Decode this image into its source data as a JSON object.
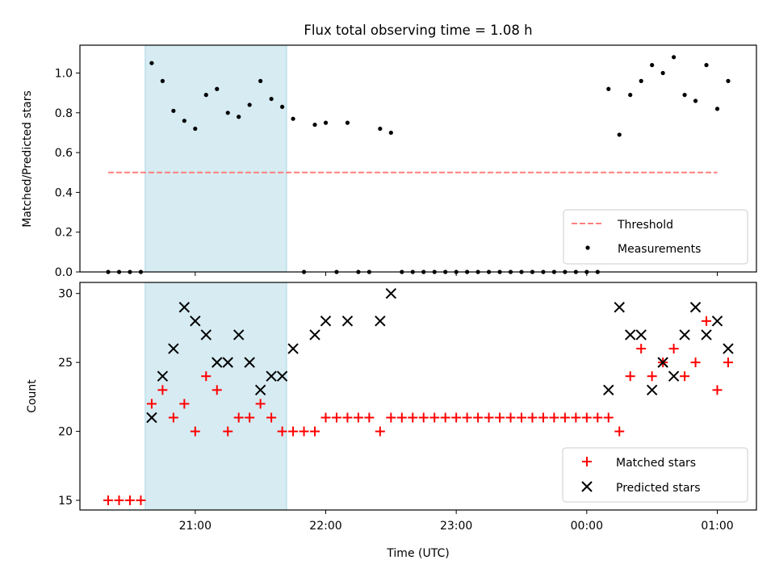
{
  "chart_data": [
    {
      "type": "scatter",
      "title": "Flux total observing time = 1.08 h",
      "xlabel": "",
      "ylabel": "Matched/Predicted stars",
      "xlim": [
        "20:07",
        "01:18"
      ],
      "ylim": [
        0,
        1.14
      ],
      "yticks": [
        "0.0",
        "0.2",
        "0.4",
        "0.6",
        "0.8",
        "1.0"
      ],
      "xticks": [
        "21:00",
        "22:00",
        "23:00",
        "00:00",
        "01:00"
      ],
      "highlight_span": [
        "20:37",
        "21:42"
      ],
      "threshold": {
        "name": "Threshold",
        "value": 0.5,
        "x": [
          "20:20",
          "01:00"
        ],
        "color": "#ff7f7f"
      },
      "legend": {
        "placement": "lower-right",
        "entries": [
          "Threshold",
          "Measurements"
        ]
      },
      "series": [
        {
          "name": "Measurements",
          "color": "#000000",
          "points": [
            [
              "20:20",
              0
            ],
            [
              "20:25",
              0
            ],
            [
              "20:30",
              0
            ],
            [
              "20:35",
              0
            ],
            [
              "20:40",
              1.05
            ],
            [
              "20:45",
              0.96
            ],
            [
              "20:50",
              0.81
            ],
            [
              "20:55",
              0.76
            ],
            [
              "21:00",
              0.72
            ],
            [
              "21:05",
              0.89
            ],
            [
              "21:10",
              0.92
            ],
            [
              "21:15",
              0.8
            ],
            [
              "21:20",
              0.78
            ],
            [
              "21:25",
              0.84
            ],
            [
              "21:30",
              0.96
            ],
            [
              "21:35",
              0.87
            ],
            [
              "21:40",
              0.83
            ],
            [
              "21:45",
              0.77
            ],
            [
              "21:50",
              0
            ],
            [
              "21:55",
              0.74
            ],
            [
              "22:00",
              0.75
            ],
            [
              "22:05",
              0
            ],
            [
              "22:10",
              0.75
            ],
            [
              "22:15",
              0
            ],
            [
              "22:20",
              0
            ],
            [
              "22:25",
              0.72
            ],
            [
              "22:30",
              0.7
            ],
            [
              "22:35",
              0
            ],
            [
              "22:40",
              0
            ],
            [
              "22:45",
              0
            ],
            [
              "22:50",
              0
            ],
            [
              "22:55",
              0
            ],
            [
              "23:00",
              0
            ],
            [
              "23:05",
              0
            ],
            [
              "23:10",
              0
            ],
            [
              "23:15",
              0
            ],
            [
              "23:20",
              0
            ],
            [
              "23:25",
              0
            ],
            [
              "23:30",
              0
            ],
            [
              "23:35",
              0
            ],
            [
              "23:40",
              0
            ],
            [
              "23:45",
              0
            ],
            [
              "23:50",
              0
            ],
            [
              "23:55",
              0
            ],
            [
              "00:00",
              0
            ],
            [
              "00:05",
              0
            ],
            [
              "00:10",
              0.92
            ],
            [
              "00:15",
              0.69
            ],
            [
              "00:20",
              0.89
            ],
            [
              "00:25",
              0.96
            ],
            [
              "00:30",
              1.04
            ],
            [
              "00:35",
              1.0
            ],
            [
              "00:40",
              1.08
            ],
            [
              "00:45",
              0.89
            ],
            [
              "00:50",
              0.86
            ],
            [
              "00:55",
              1.04
            ],
            [
              "01:00",
              0.82
            ],
            [
              "01:05",
              0.96
            ]
          ]
        }
      ]
    },
    {
      "type": "scatter",
      "title": "",
      "xlabel": "Time (UTC)",
      "ylabel": "Count",
      "xlim": [
        "20:07",
        "01:18"
      ],
      "ylim": [
        14.3,
        30.8
      ],
      "yticks": [
        "15",
        "20",
        "25",
        "30"
      ],
      "xticks": [
        "21:00",
        "22:00",
        "23:00",
        "00:00",
        "01:00"
      ],
      "highlight_span": [
        "20:37",
        "21:42"
      ],
      "legend": {
        "placement": "lower-right",
        "entries": [
          "Matched stars",
          "Predicted stars"
        ]
      },
      "series": [
        {
          "name": "Matched stars",
          "marker": "plus",
          "color": "#ff0000",
          "points": [
            [
              "20:20",
              15
            ],
            [
              "20:25",
              15
            ],
            [
              "20:30",
              15
            ],
            [
              "20:35",
              15
            ],
            [
              "20:40",
              22
            ],
            [
              "20:45",
              23
            ],
            [
              "20:50",
              21
            ],
            [
              "20:55",
              22
            ],
            [
              "21:00",
              20
            ],
            [
              "21:05",
              24
            ],
            [
              "21:10",
              23
            ],
            [
              "21:15",
              20
            ],
            [
              "21:20",
              21
            ],
            [
              "21:25",
              21
            ],
            [
              "21:30",
              22
            ],
            [
              "21:35",
              21
            ],
            [
              "21:40",
              20
            ],
            [
              "21:45",
              20
            ],
            [
              "21:50",
              20
            ],
            [
              "21:55",
              20
            ],
            [
              "22:00",
              21
            ],
            [
              "22:05",
              21
            ],
            [
              "22:10",
              21
            ],
            [
              "22:15",
              21
            ],
            [
              "22:20",
              21
            ],
            [
              "22:25",
              20
            ],
            [
              "22:30",
              21
            ],
            [
              "22:35",
              21
            ],
            [
              "22:40",
              21
            ],
            [
              "22:45",
              21
            ],
            [
              "22:50",
              21
            ],
            [
              "22:55",
              21
            ],
            [
              "23:00",
              21
            ],
            [
              "23:05",
              21
            ],
            [
              "23:10",
              21
            ],
            [
              "23:15",
              21
            ],
            [
              "23:20",
              21
            ],
            [
              "23:25",
              21
            ],
            [
              "23:30",
              21
            ],
            [
              "23:35",
              21
            ],
            [
              "23:40",
              21
            ],
            [
              "23:45",
              21
            ],
            [
              "23:50",
              21
            ],
            [
              "23:55",
              21
            ],
            [
              "00:00",
              21
            ],
            [
              "00:05",
              21
            ],
            [
              "00:10",
              21
            ],
            [
              "00:15",
              20
            ],
            [
              "00:20",
              24
            ],
            [
              "00:25",
              26
            ],
            [
              "00:30",
              24
            ],
            [
              "00:35",
              25
            ],
            [
              "00:40",
              26
            ],
            [
              "00:45",
              24
            ],
            [
              "00:50",
              25
            ],
            [
              "00:55",
              28
            ],
            [
              "01:00",
              23
            ],
            [
              "01:05",
              25
            ]
          ]
        },
        {
          "name": "Predicted stars",
          "marker": "x",
          "color": "#000000",
          "points": [
            [
              "20:40",
              21
            ],
            [
              "20:45",
              24
            ],
            [
              "20:50",
              26
            ],
            [
              "20:55",
              29
            ],
            [
              "21:00",
              28
            ],
            [
              "21:05",
              27
            ],
            [
              "21:10",
              25
            ],
            [
              "21:15",
              25
            ],
            [
              "21:20",
              27
            ],
            [
              "21:25",
              25
            ],
            [
              "21:30",
              23
            ],
            [
              "21:35",
              24
            ],
            [
              "21:40",
              24
            ],
            [
              "21:45",
              26
            ],
            [
              "21:55",
              27
            ],
            [
              "22:00",
              28
            ],
            [
              "22:10",
              28
            ],
            [
              "22:25",
              28
            ],
            [
              "22:30",
              30
            ],
            [
              "00:10",
              23
            ],
            [
              "00:15",
              29
            ],
            [
              "00:20",
              27
            ],
            [
              "00:25",
              27
            ],
            [
              "00:30",
              23
            ],
            [
              "00:35",
              25
            ],
            [
              "00:40",
              24
            ],
            [
              "00:45",
              27
            ],
            [
              "00:50",
              29
            ],
            [
              "00:55",
              27
            ],
            [
              "01:00",
              28
            ],
            [
              "01:05",
              26
            ]
          ]
        }
      ]
    }
  ]
}
